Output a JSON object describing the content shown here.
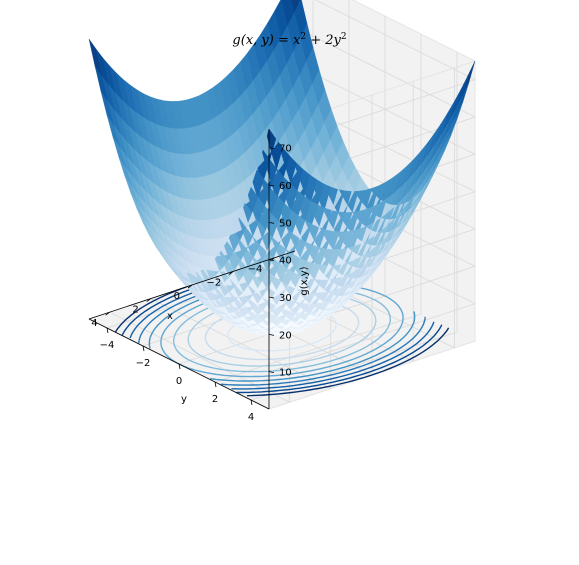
{
  "chart_data": {
    "type": "surface3d",
    "title": {
      "func_prefix": "g(x, y) = x",
      "exp1": "2",
      "mid": " + 2y",
      "exp2": "2"
    },
    "function": "x^2 + 2*y^2",
    "colormap": "Blues",
    "x": {
      "label": "x",
      "range": [
        -5,
        5
      ],
      "ticks": [
        -4,
        -2,
        0,
        2,
        4
      ]
    },
    "y": {
      "label": "y",
      "range": [
        -5,
        5
      ],
      "ticks": [
        -4,
        -2,
        0,
        2,
        4
      ]
    },
    "z": {
      "label": "g(x,y)",
      "range": [
        0,
        75
      ],
      "ticks": [
        10,
        20,
        30,
        40,
        50,
        60,
        70
      ]
    },
    "contour_offset_z": 0,
    "contour_levels": [
      5,
      10,
      15,
      20,
      25,
      30,
      35,
      40,
      45,
      50
    ],
    "grid": true
  },
  "colors": {
    "pane": "#f2f2f2",
    "pane_edge": "#e5e5e5",
    "grid": "#d9d9d9",
    "blues_light": "#f7fbff",
    "blues_dark": "#08306b"
  }
}
